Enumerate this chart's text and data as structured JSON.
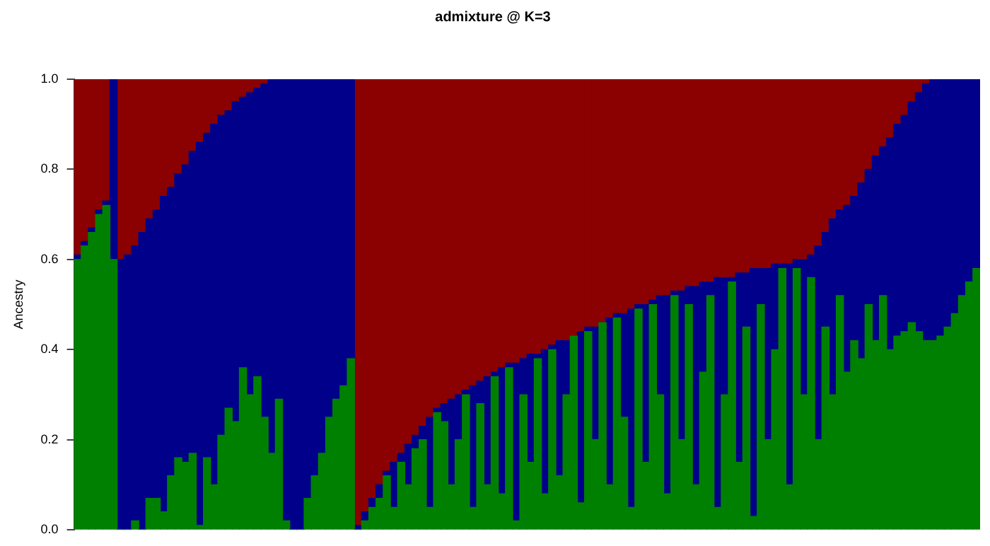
{
  "chart_data": {
    "type": "bar",
    "stacked": true,
    "title": "admixture @ K=3",
    "ylabel": "Ancestry",
    "tick_labels": "y",
    "grid": false,
    "legend": false,
    "ylim": [
      0,
      1
    ],
    "yticks": [
      {
        "value": 0,
        "label": "0.0"
      },
      {
        "value": 0.2,
        "label": "0.2"
      },
      {
        "value": 0.4,
        "label": "0.4"
      },
      {
        "value": 0.6,
        "label": "0.6"
      },
      {
        "value": 0.8,
        "label": "0.8"
      },
      {
        "value": 1,
        "label": "1.0"
      }
    ],
    "categories": [
      null,
      null,
      null,
      null,
      null,
      null,
      null,
      null,
      null,
      null,
      null,
      null,
      null,
      null,
      null,
      null,
      null,
      null,
      null,
      null,
      null,
      null,
      null,
      null,
      null,
      null,
      null,
      null,
      null,
      null,
      null,
      null,
      null,
      null,
      null,
      null,
      null,
      null,
      null,
      null,
      null,
      null,
      null,
      null,
      null,
      null,
      null,
      null,
      null,
      null,
      null,
      null,
      null,
      null,
      null,
      null,
      null,
      null,
      null,
      null,
      null,
      null,
      null,
      null,
      null,
      null,
      null,
      null,
      null,
      null,
      null,
      null,
      null,
      null,
      null,
      null,
      null,
      null,
      null,
      null,
      null,
      null,
      null,
      null,
      null,
      null,
      null,
      null,
      null,
      null,
      null,
      null,
      null,
      null,
      null,
      null,
      null,
      null,
      null,
      null,
      null,
      null,
      null,
      null,
      null,
      null,
      null,
      null,
      null,
      null,
      null,
      null,
      null,
      null,
      null,
      null,
      null,
      null,
      null,
      null,
      null,
      null,
      null,
      null,
      null,
      null
    ],
    "series": [
      {
        "color": "#008000",
        "values": [
          0.6,
          0.63,
          0.66,
          0.7,
          0.72,
          0.6,
          0,
          0,
          0.02,
          0,
          0.07,
          0.07,
          0.04,
          0.12,
          0.16,
          0.15,
          0.17,
          0.01,
          0.16,
          0.1,
          0.21,
          0.27,
          0.24,
          0.36,
          0.3,
          0.34,
          0.25,
          0.17,
          0.29,
          0.02,
          0,
          0,
          0.07,
          0.12,
          0.17,
          0.25,
          0.29,
          0.32,
          0.38,
          0,
          0.02,
          0.05,
          0.07,
          0.12,
          0.05,
          0.15,
          0.1,
          0.18,
          0.2,
          0.05,
          0.26,
          0.24,
          0.1,
          0.2,
          0.3,
          0.05,
          0.28,
          0.1,
          0.34,
          0.08,
          0.36,
          0.02,
          0.3,
          0.15,
          0.38,
          0.08,
          0.4,
          0.12,
          0.3,
          0.43,
          0.06,
          0.44,
          0.2,
          0.46,
          0.1,
          0.47,
          0.25,
          0.05,
          0.49,
          0.15,
          0.5,
          0.3,
          0.08,
          0.52,
          0.2,
          0.5,
          0.1,
          0.35,
          0.52,
          0.05,
          0.3,
          0.55,
          0.15,
          0.45,
          0.03,
          0.5,
          0.2,
          0.4,
          0.58,
          0.1,
          0.58,
          0.3,
          0.56,
          0.2,
          0.45,
          0.3,
          0.52,
          0.35,
          0.42,
          0.38,
          0.5,
          0.42,
          0.52,
          0.4,
          0.43,
          0.44,
          0.46,
          0.44,
          0.42,
          0.42,
          0.43,
          0.45,
          0.48,
          0.52,
          0.55,
          0.58
        ]
      },
      {
        "color": "#00008b",
        "values": [
          0.01,
          0.01,
          0.01,
          0.01,
          0.01,
          0.4,
          0.6,
          0.61,
          0.61,
          0.66,
          0.62,
          0.64,
          0.7,
          0.64,
          0.63,
          0.66,
          0.67,
          0.85,
          0.72,
          0.8,
          0.71,
          0.66,
          0.71,
          0.6,
          0.67,
          0.64,
          0.74,
          0.83,
          0.71,
          0.98,
          1,
          1,
          0.93,
          0.88,
          0.83,
          0.75,
          0.71,
          0.68,
          0.62,
          0.01,
          0.02,
          0.02,
          0.03,
          0.01,
          0.1,
          0.02,
          0.09,
          0.03,
          0.03,
          0.2,
          0.01,
          0.04,
          0.19,
          0.1,
          0.01,
          0.27,
          0.05,
          0.24,
          0.01,
          0.28,
          0.01,
          0.35,
          0.08,
          0.24,
          0.01,
          0.32,
          0.01,
          0.3,
          0.12,
          0,
          0.38,
          0.01,
          0.25,
          0,
          0.37,
          0.01,
          0.23,
          0.44,
          0.01,
          0.35,
          0.01,
          0.22,
          0.44,
          0.01,
          0.33,
          0.04,
          0.44,
          0.2,
          0.03,
          0.51,
          0.26,
          0.01,
          0.42,
          0.12,
          0.55,
          0.08,
          0.38,
          0.19,
          0.01,
          0.49,
          0.02,
          0.3,
          0.05,
          0.43,
          0.21,
          0.39,
          0.19,
          0.37,
          0.32,
          0.39,
          0.3,
          0.41,
          0.33,
          0.47,
          0.47,
          0.48,
          0.49,
          0.53,
          0.57,
          0.58,
          0.57,
          0.55,
          0.52,
          0.48,
          0.45,
          0.42
        ]
      },
      {
        "color": "#8b0000",
        "values": [
          0.39,
          0.36,
          0.33,
          0.29,
          0.27,
          0,
          0.4,
          0.39,
          0.37,
          0.34,
          0.31,
          0.29,
          0.26,
          0.24,
          0.21,
          0.19,
          0.16,
          0.14,
          0.12,
          0.1,
          0.08,
          0.07,
          0.05,
          0.04,
          0.03,
          0.02,
          0.01,
          0,
          0,
          0,
          0,
          0,
          0,
          0,
          0,
          0,
          0,
          0,
          0,
          0.99,
          0.96,
          0.93,
          0.9,
          0.87,
          0.85,
          0.83,
          0.81,
          0.79,
          0.77,
          0.75,
          0.73,
          0.72,
          0.71,
          0.7,
          0.69,
          0.68,
          0.67,
          0.66,
          0.65,
          0.64,
          0.63,
          0.63,
          0.62,
          0.61,
          0.61,
          0.6,
          0.59,
          0.58,
          0.58,
          0.57,
          0.56,
          0.55,
          0.55,
          0.54,
          0.53,
          0.52,
          0.52,
          0.51,
          0.5,
          0.5,
          0.49,
          0.48,
          0.48,
          0.47,
          0.47,
          0.46,
          0.46,
          0.45,
          0.45,
          0.44,
          0.44,
          0.44,
          0.43,
          0.43,
          0.42,
          0.42,
          0.42,
          0.41,
          0.41,
          0.41,
          0.4,
          0.4,
          0.39,
          0.37,
          0.34,
          0.31,
          0.29,
          0.28,
          0.26,
          0.23,
          0.2,
          0.17,
          0.15,
          0.13,
          0.1,
          0.08,
          0.05,
          0.03,
          0.01,
          0,
          0,
          0,
          0,
          0,
          0,
          0
        ]
      }
    ]
  }
}
